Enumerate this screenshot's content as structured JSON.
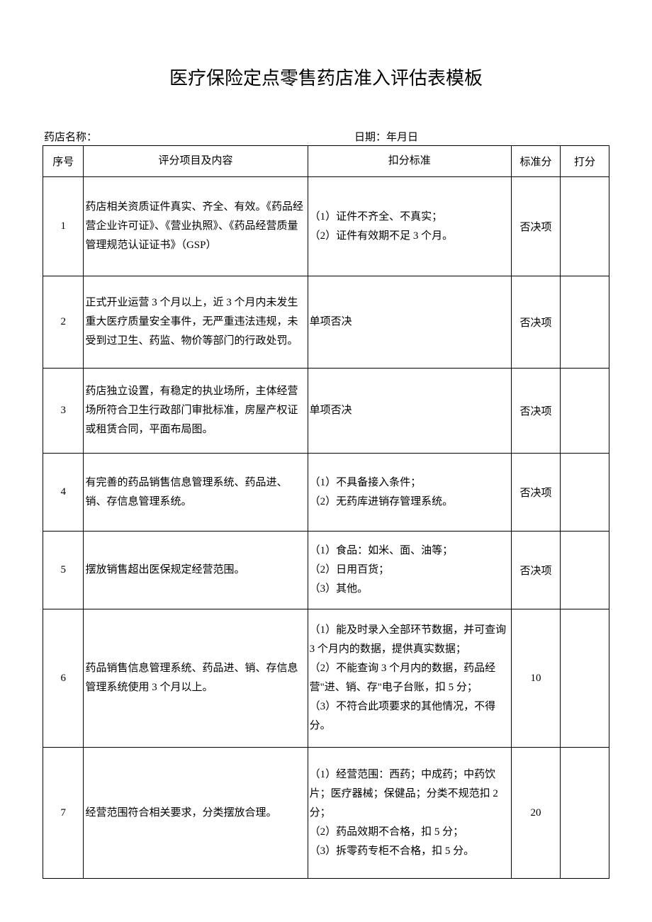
{
  "title": "医疗保险定点零售药店准入评估表模板",
  "header": {
    "pharmacy_name_label": "药店名称：",
    "date_label": "日期：年月日"
  },
  "columns": {
    "seq": "序号",
    "content": "评分项目及内容",
    "criteria": "扣分标准",
    "score": "标准分",
    "mark": "打分"
  },
  "rows": [
    {
      "seq": "1",
      "content": "药店相关资质证件真实、齐全、有效。《药品经营企业许可证》、《营业执照》、《药品经营质量管理规范认证证书》（GSP）",
      "criteria": "（1）证件不齐全、不真实；\n（2）证件有效期不足 3 个月。",
      "score": "否决项",
      "mark": ""
    },
    {
      "seq": "2",
      "content": "正式开业运营 3 个月以上，近 3 个月内未发生重大医疗质量安全事件，无严重违法违规，未受到过卫生、药监、物价等部门的行政处罚。",
      "criteria": "单项否决",
      "score": "否决项",
      "mark": ""
    },
    {
      "seq": "3",
      "content": "药店独立设置，有稳定的执业场所，主体经营场所符合卫生行政部门审批标准，房屋产权证或租赁合同，平面布局图。",
      "criteria": "单项否决",
      "score": "否决项",
      "mark": ""
    },
    {
      "seq": "4",
      "content": "有完善的药品销售信息管理系统、药品进、销、存信息管理系统。",
      "criteria": "（1）不具备接入条件；\n（2）无药库进销存管理系统。",
      "score": "否决项",
      "mark": ""
    },
    {
      "seq": "5",
      "content": "摆放销售超出医保规定经营范围。",
      "criteria": "（1）食品：如米、面、油等；\n（2）日用百货；\n（3）其他。",
      "score": "否决项",
      "mark": ""
    },
    {
      "seq": "6",
      "content": "药品销售信息管理系统、药品进、销、存信息管理系统使用 3 个月以上。",
      "criteria": "（1）能及时录入全部环节数据，并可查询 3 个月内的数据，提供真实数据；\n（2）不能查询 3 个月内的数据，药品经营\"进、销、存\"电子台账，扣 5 分；\n（3）不符合此项要求的其他情况，不得分。",
      "score": "10",
      "mark": ""
    },
    {
      "seq": "7",
      "content": "经营范围符合相关要求，分类摆放合理。",
      "criteria": "（1）经营范围：西药；中成药；中药饮片；医疗器械；保健品；分类不规范扣 2 分；\n（2）药品效期不合格，扣 5 分；\n（3）拆零药专柜不合格，扣 5 分。",
      "score": "20",
      "mark": ""
    }
  ],
  "style": {
    "background_color": "#ffffff",
    "text_color": "#000000",
    "border_color": "#000000",
    "title_fontsize": 26,
    "body_fontsize": 15,
    "font_family": "SimSun"
  }
}
